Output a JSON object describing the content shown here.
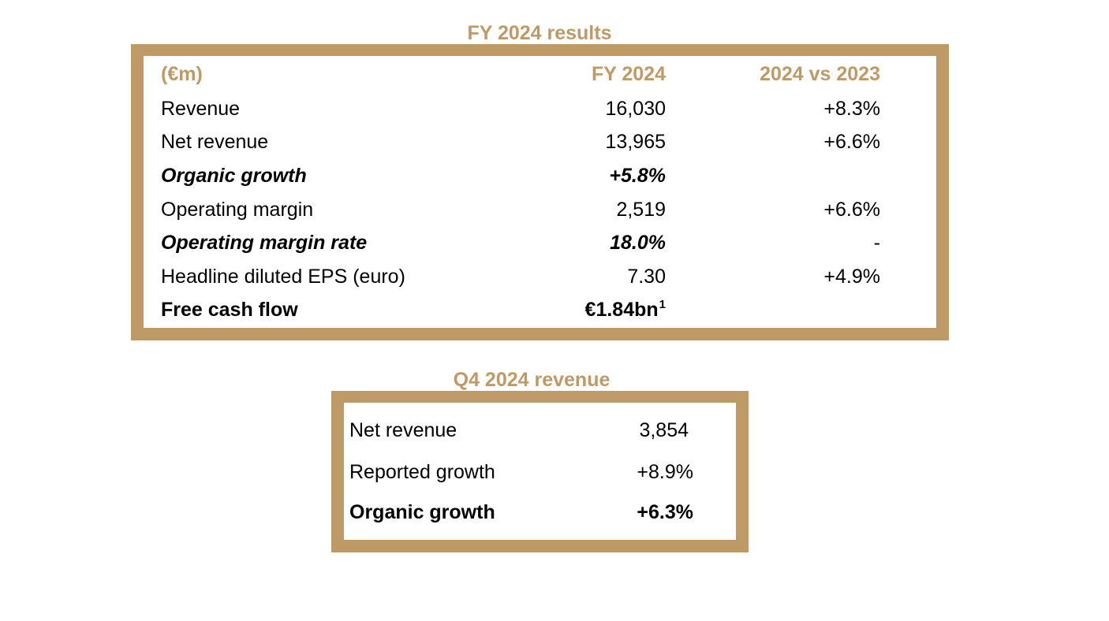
{
  "colors": {
    "accent": "#BE9A66"
  },
  "fy": {
    "title": "FY 2024 results",
    "headers": {
      "unit": "(€m)",
      "col1": "FY 2024",
      "col2": "2024 vs 2023"
    },
    "rows": [
      {
        "label": "Revenue",
        "value": "16,030",
        "change": "+8.3%",
        "style": "normal"
      },
      {
        "label": "Net revenue",
        "value": "13,965",
        "change": "+6.6%",
        "style": "normal"
      },
      {
        "label": "Organic growth",
        "value": "+5.8%",
        "change": "",
        "style": "bold-italic"
      },
      {
        "label": "Operating margin",
        "value": "2,519",
        "change": "+6.6%",
        "style": "normal"
      },
      {
        "label": "Operating margin rate",
        "value": "18.0%",
        "change": "-",
        "style": "bold-italic"
      },
      {
        "label": "Headline diluted EPS (euro)",
        "value": "7.30",
        "change": "+4.9%",
        "style": "normal"
      },
      {
        "label": "Free cash flow",
        "value": "€1.84bn",
        "footnote": "1",
        "change": "",
        "style": "bold"
      }
    ]
  },
  "q4": {
    "title": "Q4 2024 revenue",
    "rows": [
      {
        "label": "Net revenue",
        "value": "3,854",
        "style": "normal"
      },
      {
        "label": "Reported growth",
        "value": "+8.9%",
        "style": "normal"
      },
      {
        "label": "Organic growth",
        "value": "+6.3%",
        "style": "bold"
      }
    ]
  }
}
